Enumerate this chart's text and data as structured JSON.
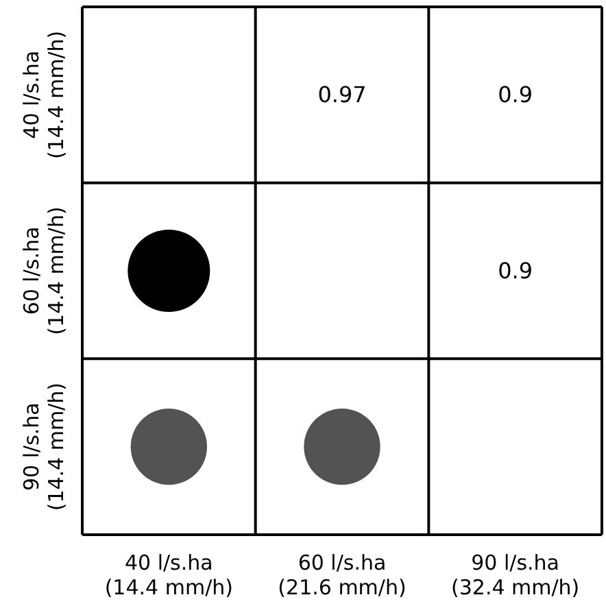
{
  "chart_data": {
    "type": "heatmap",
    "categories": [
      "40 l/s.ha\n(14.4 mm/h)",
      "60 l/s.ha\n(21.6 mm/h)",
      "90 l/s.ha\n(32.4 mm/h)"
    ],
    "y_categories": [
      "40 l/s.ha\n(14.4 mm/h)",
      "60 l/s.ha\n(14.4 mm/h)",
      "90 l/s.ha\n(14.4 mm/h)"
    ],
    "cells": [
      [
        null,
        0.97,
        0.9
      ],
      [
        null,
        null,
        0.9
      ],
      [
        null,
        null,
        null
      ]
    ],
    "data_labels": true,
    "grid": true
  }
}
